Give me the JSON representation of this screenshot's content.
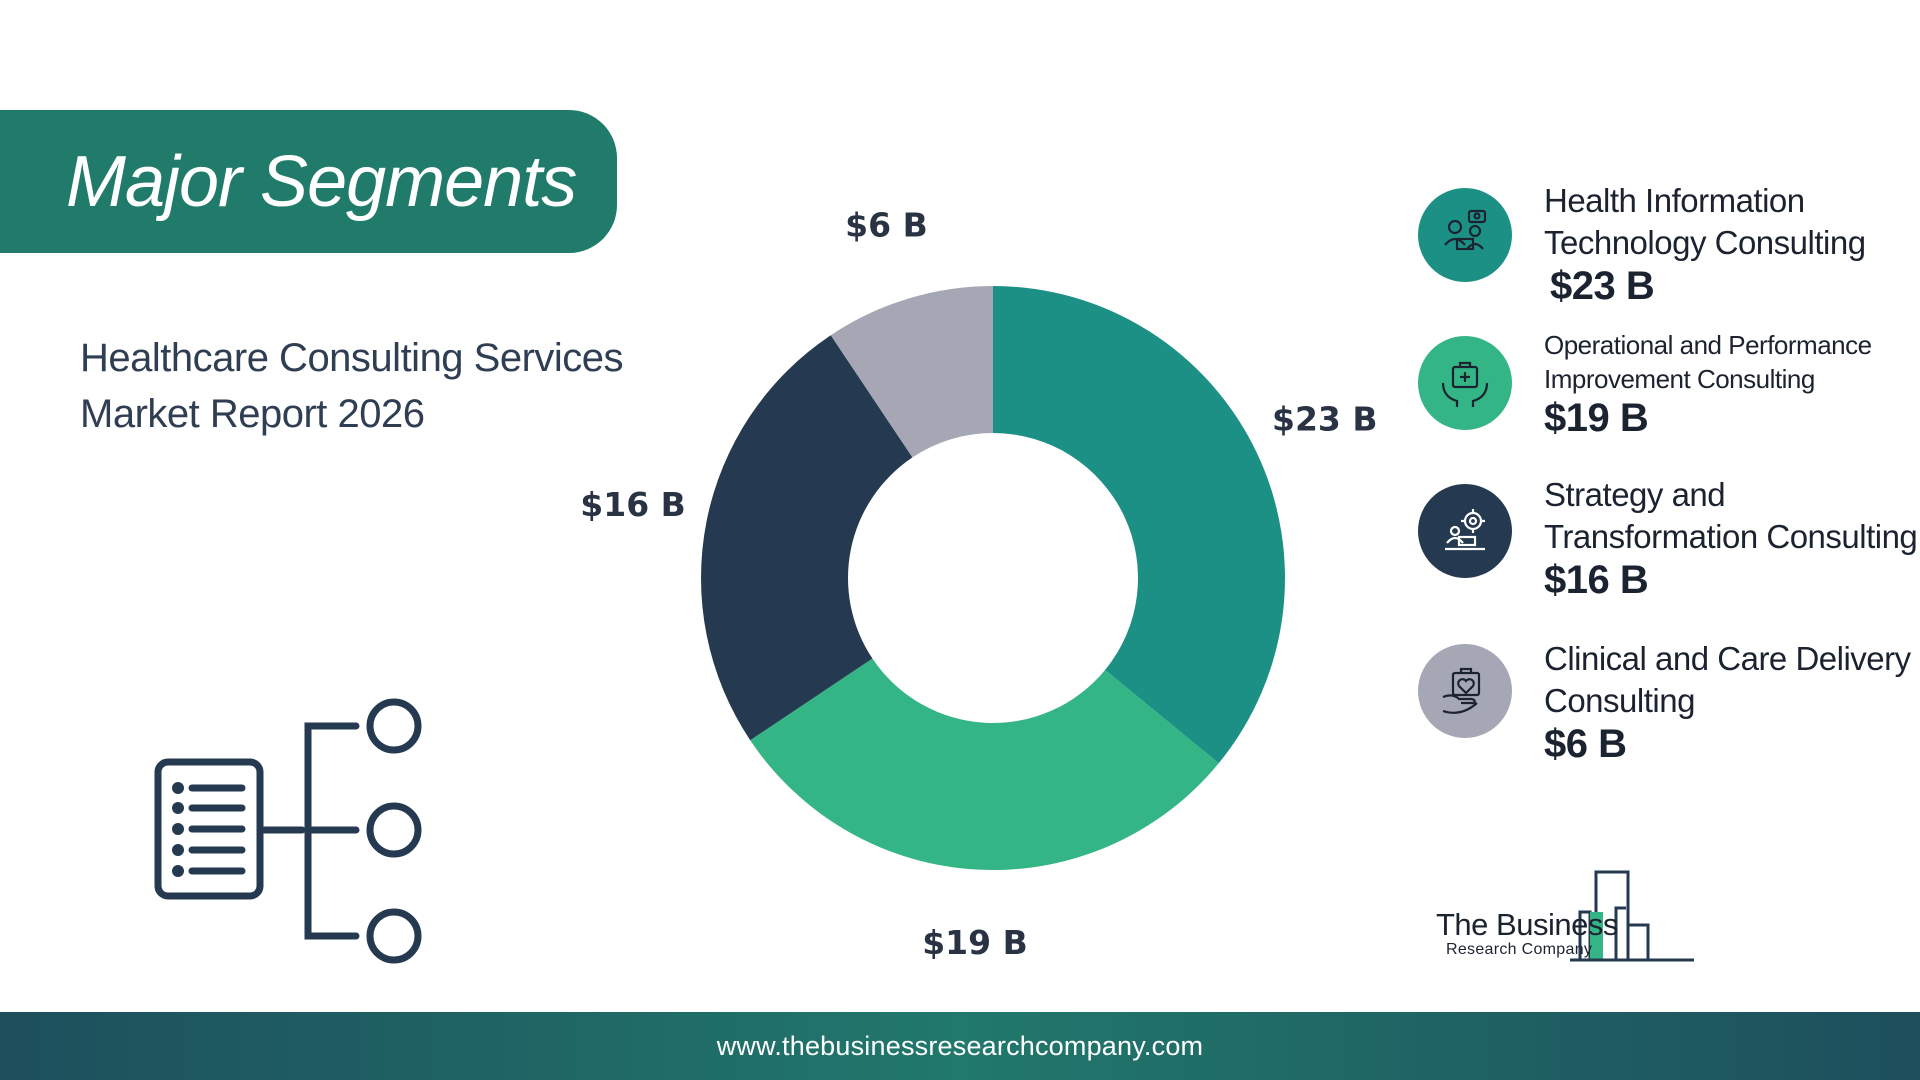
{
  "header": {
    "title": "Major Segments"
  },
  "report": {
    "line1": "Healthcare Consulting Services",
    "line2": "Market Report 2026"
  },
  "chart_data": {
    "type": "pie",
    "categories": [
      "Health Information Technology Consulting",
      "Operational and Performance Improvement Consulting",
      "Strategy and Transformation Consulting",
      "Clinical and Care Delivery Consulting"
    ],
    "values": [
      23,
      19,
      16,
      6
    ],
    "value_labels": [
      "$23 B",
      "$19 B",
      "$16 B",
      "$6 B"
    ],
    "colors": [
      "#1d9086",
      "#34b585",
      "#253a50",
      "#a5a8b4"
    ],
    "donut": true,
    "legend_position": "right"
  },
  "legend": [
    {
      "name_line1": "Health Information",
      "name_line2": "Technology Consulting",
      "value": "$23 B",
      "icon": "consultant-laptop-icon",
      "color": "#1d9086"
    },
    {
      "name_line1": "Operational and Performance",
      "name_line2": "Improvement Consulting",
      "value": "$19 B",
      "icon": "medical-kit-hands-icon",
      "color": "#34b585"
    },
    {
      "name_line1": "Strategy and",
      "name_line2": "Transformation Consulting",
      "value": "$16 B",
      "icon": "strategy-gear-icon",
      "color": "#253a50"
    },
    {
      "name_line1": "Clinical and Care Delivery",
      "name_line2": "Consulting",
      "value": "$6 B",
      "icon": "heart-care-icon",
      "color": "#a5a8b4"
    }
  ],
  "logo": {
    "line1": "The Business",
    "line2": "Research Company"
  },
  "footer": {
    "url": "www.thebusinessresearchcompany.com"
  }
}
